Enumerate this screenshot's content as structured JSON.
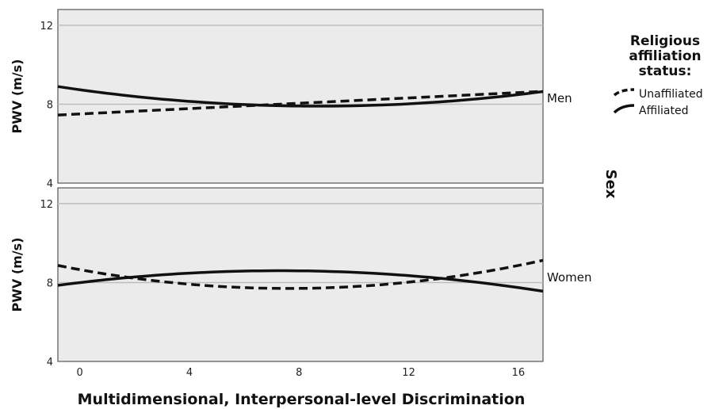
{
  "chart_data": {
    "type": "line",
    "xlabel": "Multidimensional, Interpersonal-level Discrimination",
    "ylabel": "PWV (m/s)",
    "x_ticks": [
      0,
      4,
      8,
      12,
      16
    ],
    "y_ticks": [
      4,
      8,
      12
    ],
    "xlim": [
      -0.8,
      16.9
    ],
    "ylim": [
      4,
      12.8
    ],
    "grid": "horizontal",
    "facet_label": "Sex",
    "legend": {
      "title_lines": [
        "Religious",
        "affiliation",
        "status:"
      ],
      "position": "top-right",
      "entries": [
        {
          "name": "Unaffiliated",
          "style": "dashed"
        },
        {
          "name": "Affiliated",
          "style": "solid"
        }
      ]
    },
    "panels": [
      {
        "label": "Men",
        "series": [
          {
            "name": "Affiliated",
            "style": "solid",
            "x": [
              -0.8,
              16.9
            ],
            "quadratic": {
              "a": 0.011,
              "vertex_x": 8.7,
              "vertex_y": 7.9
            }
          },
          {
            "name": "Unaffiliated",
            "style": "dashed",
            "x": [
              -0.8,
              16.9
            ],
            "points": [
              [
                -0.8,
                7.45
              ],
              [
                16.9,
                8.65
              ]
            ]
          }
        ]
      },
      {
        "label": "Women",
        "series": [
          {
            "name": "Affiliated",
            "style": "solid",
            "x": [
              -0.8,
              16.9
            ],
            "quadratic": {
              "a": -0.0113,
              "vertex_x": 7.3,
              "vertex_y": 8.6
            }
          },
          {
            "name": "Unaffiliated",
            "style": "dashed",
            "x": [
              -0.8,
              16.9
            ],
            "quadratic": {
              "a": 0.0165,
              "vertex_x": 7.6,
              "vertex_y": 7.7
            }
          }
        ]
      }
    ]
  }
}
